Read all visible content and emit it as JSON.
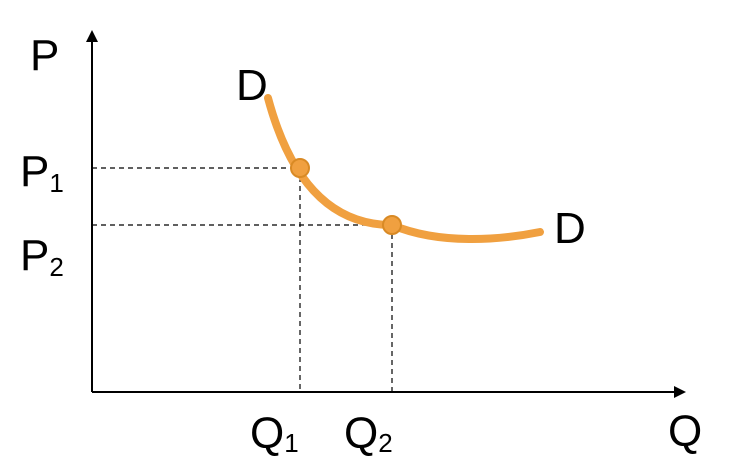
{
  "axes": {
    "y_label": "P",
    "x_label": "Q"
  },
  "curve": {
    "label_start": "D",
    "label_end": "D",
    "color": "#F0A040",
    "point_fill": "#F0A040",
    "point_stroke": "#D98A25"
  },
  "points": [
    {
      "p_label": "P",
      "p_sub": "1",
      "q_label": "Q",
      "q_sub": "1"
    },
    {
      "p_label": "P",
      "p_sub": "2",
      "q_label": "Q",
      "q_sub": "2"
    }
  ],
  "colors": {
    "axis": "#000000",
    "guide": "#000000"
  }
}
